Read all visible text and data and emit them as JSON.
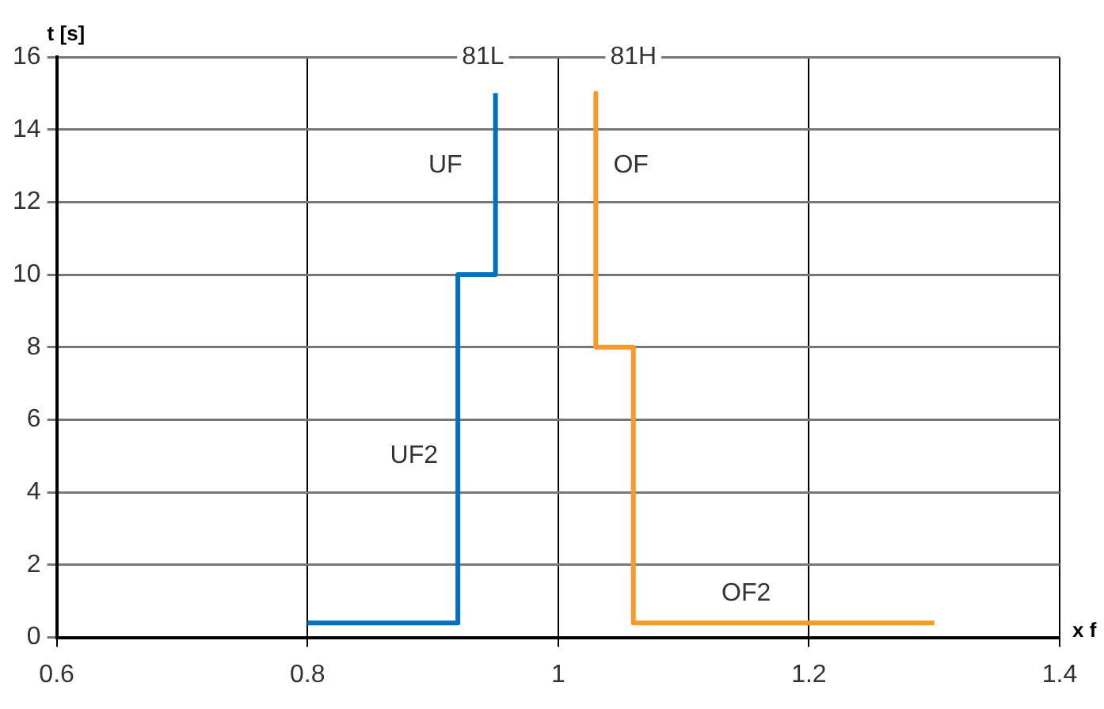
{
  "chart_data": {
    "type": "line",
    "xlabel": "x f",
    "ylabel": "t [s]",
    "xlim": [
      0.6,
      1.4
    ],
    "xticks": [
      0.6,
      0.8,
      {
        "value": 1,
        "label": "1"
      },
      1.2,
      1.4
    ],
    "ylim": [
      0,
      16
    ],
    "yticks": [
      0,
      2,
      4,
      6,
      8,
      10,
      12,
      14,
      16
    ],
    "grid": true,
    "legend": false,
    "marker": "none",
    "line_style": "solid",
    "series": [
      {
        "color": "#0070c0",
        "x": [
          0.8,
          0.92,
          0.92,
          0.95,
          0.95
        ],
        "values": [
          0.4,
          0.4,
          10,
          10,
          15
        ]
      },
      {
        "color": "#f79a2a",
        "x": [
          1.03,
          1.03,
          1.06,
          1.06,
          1.3
        ],
        "values": [
          15,
          8,
          8,
          0.4,
          0.4
        ]
      }
    ],
    "annotations": [
      {
        "text": "81L",
        "x": 0.94,
        "y": 16
      },
      {
        "text": "81H",
        "x": 1.06,
        "y": 16
      },
      {
        "text": "UF",
        "x": 0.91,
        "y": 13
      },
      {
        "text": "OF",
        "x": 1.058,
        "y": 13
      },
      {
        "text": "UF2",
        "x": 0.885,
        "y": 5
      },
      {
        "text": "OF2",
        "x": 1.15,
        "y": 1.2
      }
    ]
  }
}
